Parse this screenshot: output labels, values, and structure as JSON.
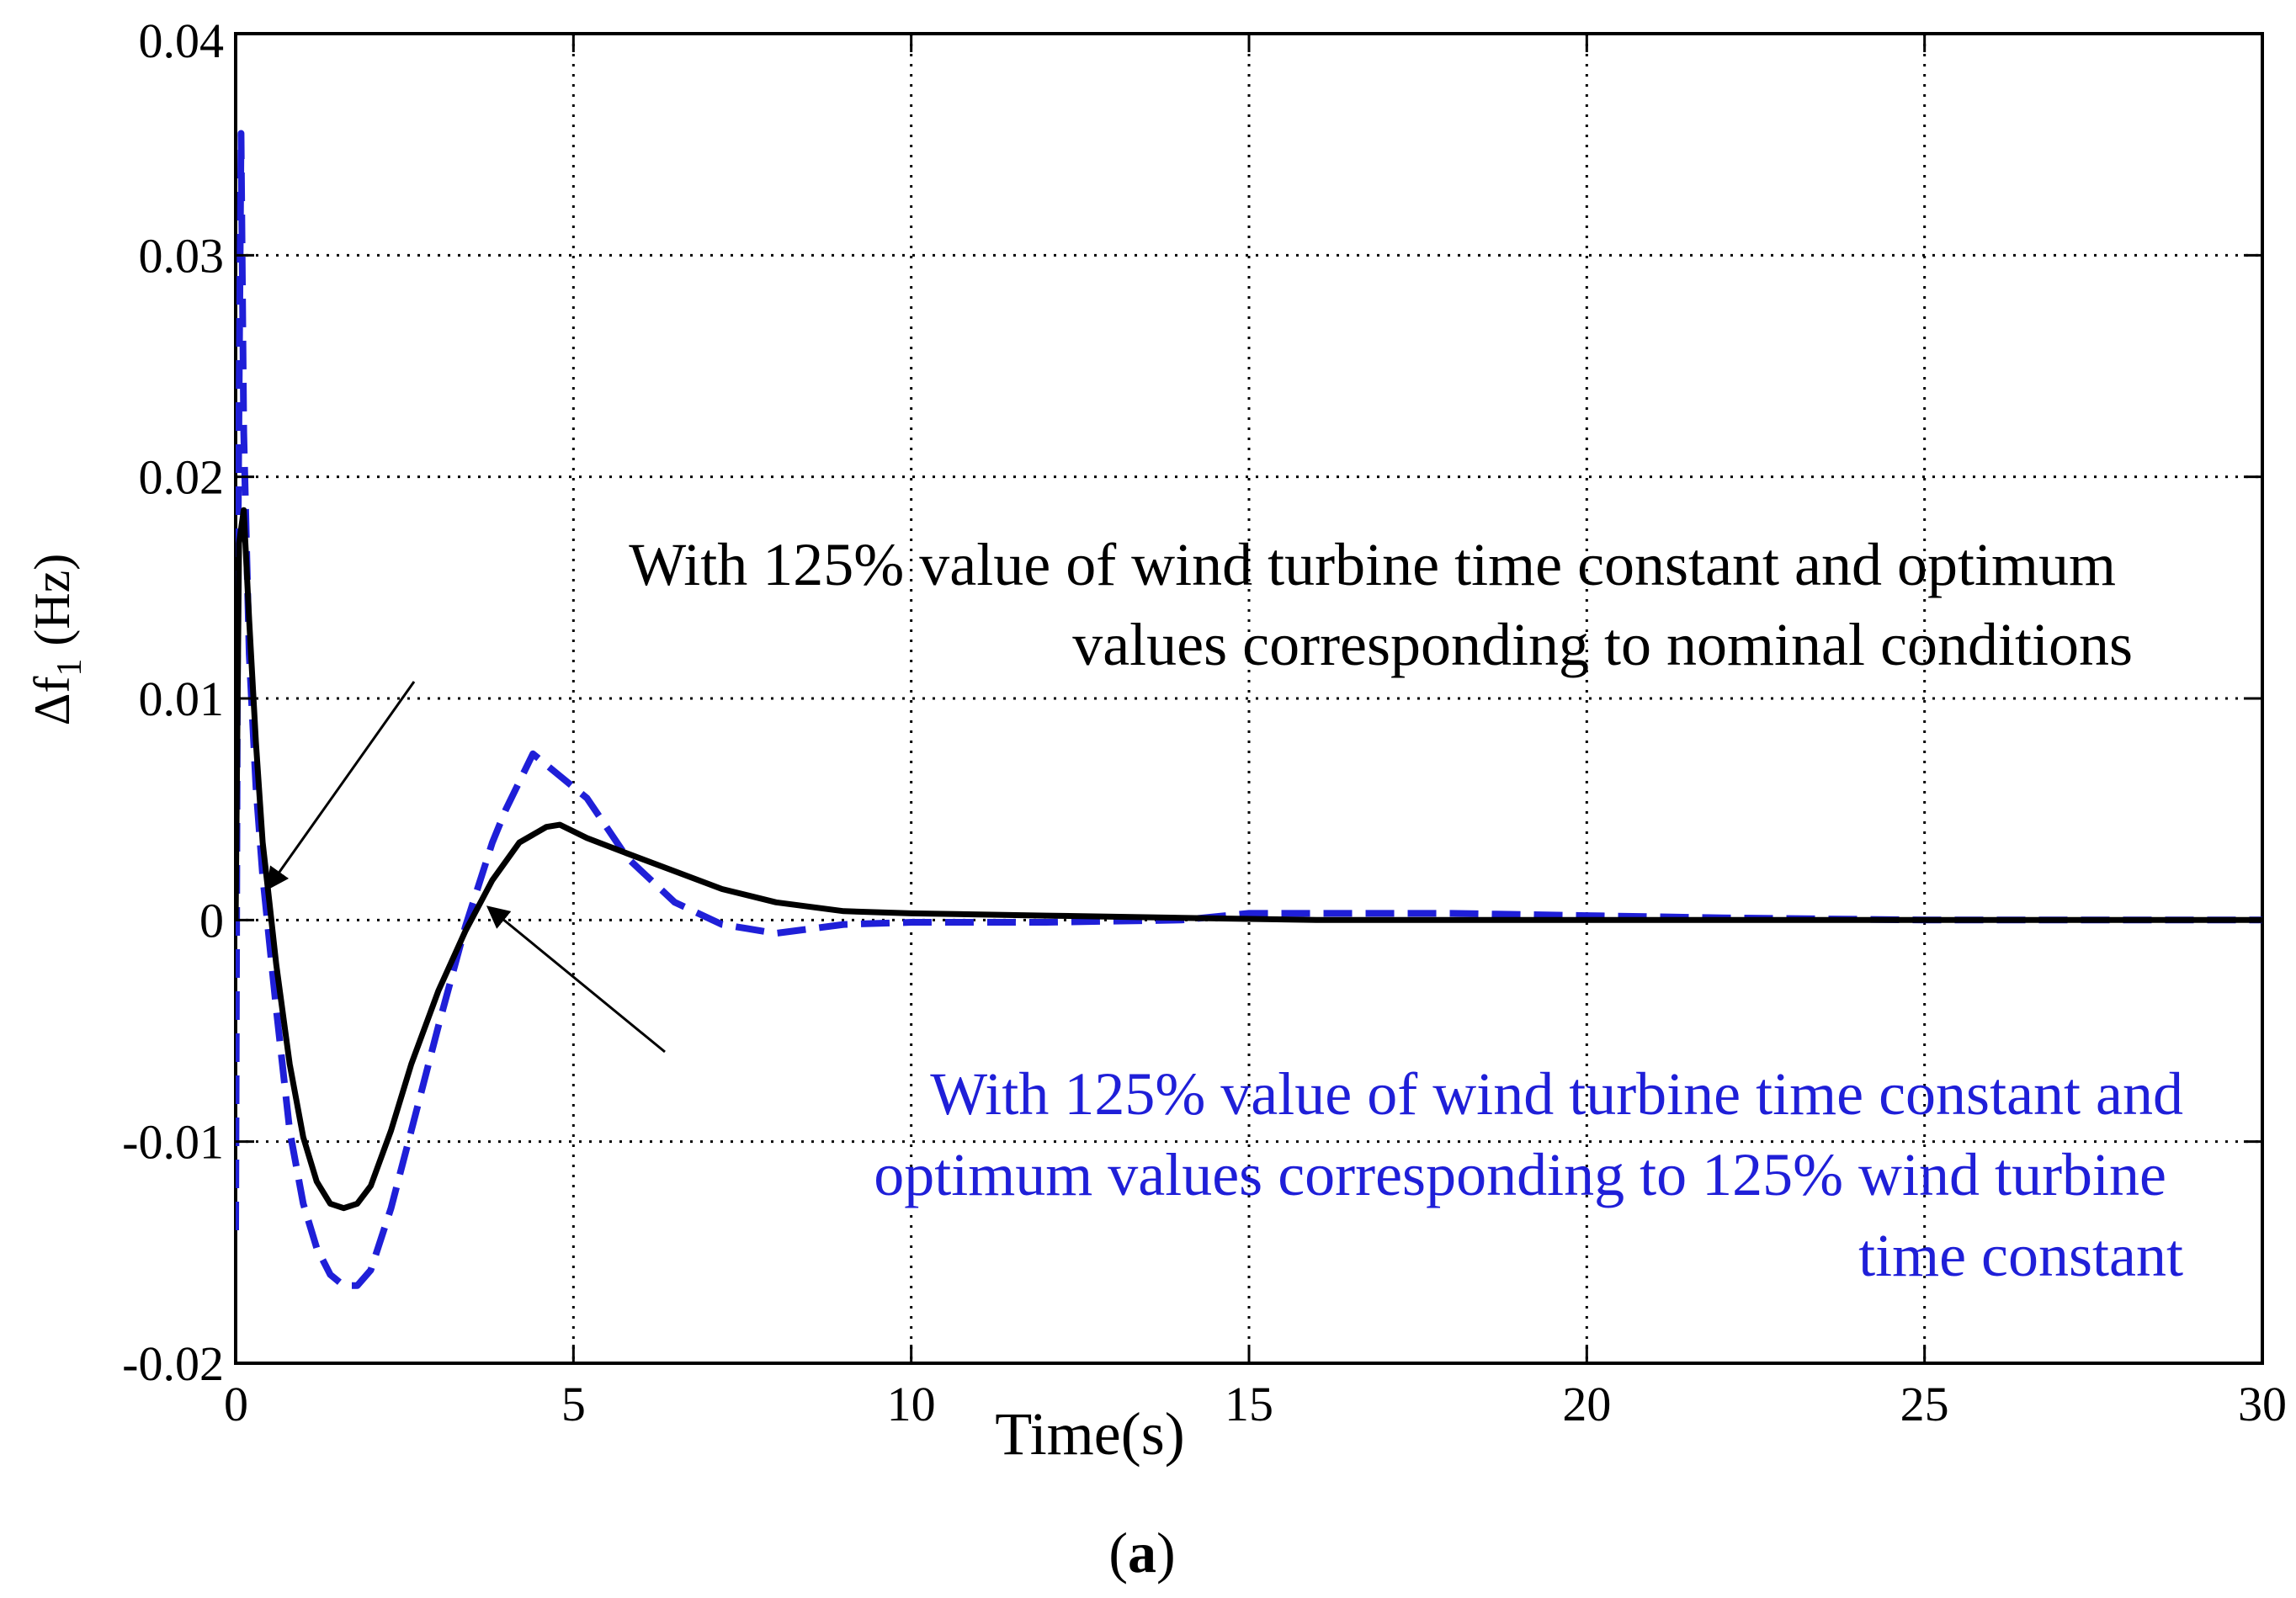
{
  "chart_data": {
    "type": "line",
    "title": "",
    "xlabel": "Time(s)",
    "ylabel": "Δf",
    "ylabel_sub": "1",
    "ylabel_unit": " (Hz)",
    "xlim": [
      0,
      30
    ],
    "ylim": [
      -0.02,
      0.04
    ],
    "xticks": [
      0,
      5,
      10,
      15,
      20,
      25,
      30
    ],
    "xtick_labels": [
      "0",
      "5",
      "10",
      "15",
      "20",
      "25",
      "30"
    ],
    "yticks": [
      -0.02,
      -0.01,
      0,
      0.01,
      0.02,
      0.03,
      0.04
    ],
    "ytick_labels": [
      "-0.02",
      "-0.01",
      "0",
      "0.01",
      "0.02",
      "0.03",
      "0.04"
    ],
    "grid": true,
    "series": [
      {
        "name": "With 125% value of wind turbine time constant and optimum values corresponding to nominal conditions",
        "color": "#000000",
        "style": "solid",
        "x": [
          0,
          0.05,
          0.12,
          0.2,
          0.3,
          0.4,
          0.5,
          0.6,
          0.8,
          1.0,
          1.2,
          1.4,
          1.6,
          1.8,
          2.0,
          2.3,
          2.6,
          3.0,
          3.4,
          3.8,
          4.2,
          4.6,
          4.8,
          5.2,
          5.8,
          6.5,
          7.2,
          8.0,
          9.0,
          10.0,
          12.0,
          14.0,
          16.0,
          20.0,
          25.0,
          30.0
        ],
        "y": [
          0,
          0.017,
          0.0185,
          0.0135,
          0.008,
          0.0035,
          0.0008,
          -0.002,
          -0.0065,
          -0.0098,
          -0.0118,
          -0.0128,
          -0.013,
          -0.0128,
          -0.012,
          -0.0095,
          -0.0065,
          -0.0032,
          -0.0005,
          0.0018,
          0.0035,
          0.0042,
          0.0043,
          0.0037,
          0.003,
          0.0022,
          0.0014,
          0.0008,
          0.0004,
          0.0003,
          0.0002,
          0.0001,
          0.0,
          0.0,
          0.0,
          0.0
        ]
      },
      {
        "name": "With 125% value of wind turbine time constant and optimum values corresponding to 125% wind turbine time constant",
        "color": "#1f1fd8",
        "style": "dashed",
        "x": [
          0,
          0.03,
          0.08,
          0.12,
          0.2,
          0.3,
          0.4,
          0.5,
          0.6,
          0.8,
          1.0,
          1.2,
          1.4,
          1.6,
          1.8,
          2.0,
          2.3,
          2.6,
          3.0,
          3.4,
          3.8,
          4.0,
          4.4,
          4.8,
          5.2,
          5.8,
          6.5,
          7.2,
          8.0,
          9.0,
          10.0,
          12.0,
          14.0,
          15.0,
          16.0,
          18.0,
          20.0,
          22.0,
          25.0,
          30.0
        ],
        "y": [
          -0.014,
          0.015,
          0.0355,
          0.022,
          0.012,
          0.006,
          0.002,
          -0.001,
          -0.004,
          -0.0095,
          -0.0128,
          -0.0148,
          -0.016,
          -0.0165,
          -0.0165,
          -0.0158,
          -0.013,
          -0.0095,
          -0.0048,
          -0.0003,
          0.0035,
          0.005,
          0.0075,
          0.0065,
          0.0055,
          0.0028,
          0.0008,
          -0.0002,
          -0.0006,
          -0.0002,
          -0.0001,
          -0.0001,
          0.0,
          0.0003,
          0.0003,
          0.0003,
          0.0002,
          0.0001,
          0.0,
          0.0
        ]
      }
    ],
    "annotations": {
      "black_line1": "With 125% value of wind turbine time constant and optimum",
      "black_line2": "values corresponding to nominal conditions",
      "blue_line1": "With 125% value of wind turbine time constant and",
      "blue_line2": "optimum values corresponding to 125% wind turbine",
      "blue_line3": "time constant"
    }
  },
  "caption": {
    "open": "(",
    "letter": "a",
    "close": ")"
  }
}
